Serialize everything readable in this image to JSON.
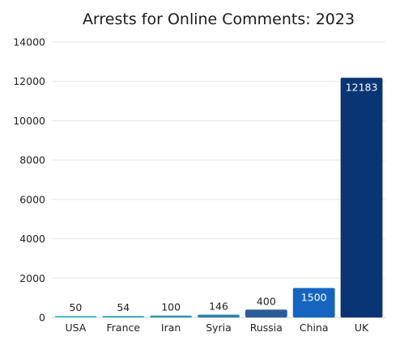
{
  "chart_data": {
    "type": "bar",
    "title": "Arrests for Online Comments: 2023",
    "xlabel": "",
    "ylabel": "",
    "categories": [
      "USA",
      "France",
      "Iran",
      "Syria",
      "Russia",
      "China",
      "UK"
    ],
    "values": [
      50,
      54,
      100,
      146,
      400,
      1500,
      12183
    ],
    "data_labels": [
      "50",
      "54",
      "100",
      "146",
      "400",
      "1500",
      "12183"
    ],
    "ylim": [
      0,
      14000
    ],
    "yticks": [
      0,
      2000,
      4000,
      6000,
      8000,
      10000,
      12000,
      14000
    ],
    "grid": true,
    "legend": "none",
    "colors": [
      "#4fc3c8",
      "#3fb0bf",
      "#2f96b4",
      "#2a7fae",
      "#2c5d99",
      "#1565c0",
      "#0a3575"
    ],
    "label_colors": [
      "#222222",
      "#222222",
      "#222222",
      "#222222",
      "#222222",
      "#ffffff",
      "#ffffff"
    ],
    "label_inside": [
      false,
      false,
      false,
      false,
      false,
      true,
      true
    ]
  }
}
